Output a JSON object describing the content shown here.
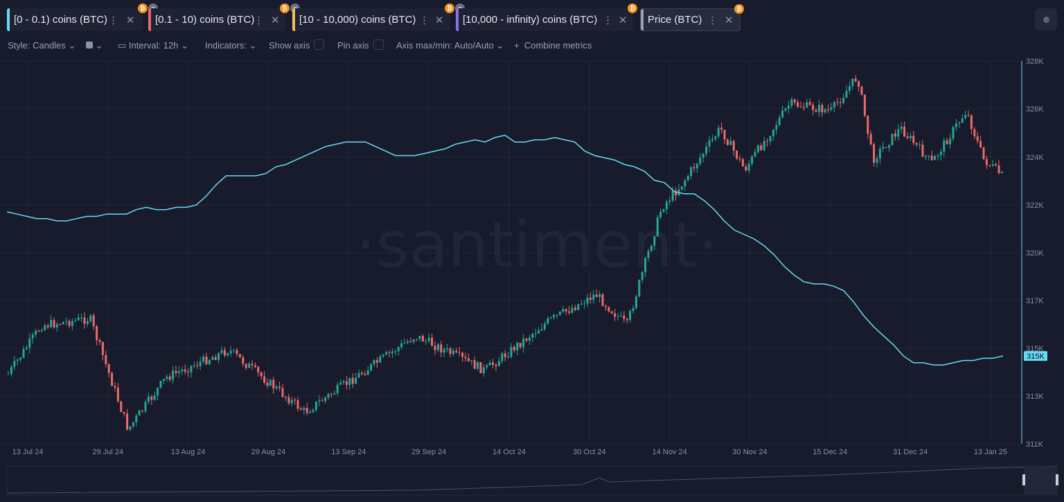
{
  "tabs": [
    {
      "label": "[0 - 0.1) coins (BTC)",
      "color": "#68dbf4",
      "hidden": false
    },
    {
      "label": "[0.1 - 10) coins (BTC)",
      "color": "#f06565",
      "hidden": true
    },
    {
      "label": "[10 - 10,000) coins (BTC)",
      "color": "#f3be5a",
      "hidden": true
    },
    {
      "label": "[10,000 - infinity) coins (BTC)",
      "color": "#8c6ff0",
      "hidden": true
    },
    {
      "label": "Price (BTC)",
      "color": "#c9cedc",
      "hidden": false
    }
  ],
  "toolbar": {
    "style": "Style: Candles",
    "interval": "Interval: 12h",
    "indicators": "Indicators:",
    "show_axis": "Show axis",
    "pin_axis": "Pin axis",
    "axis_minmax": "Axis max/min: Auto/Auto",
    "combine": "Combine metrics"
  },
  "watermark": "·santiment·",
  "colors": {
    "line": "#68dbf4",
    "up": "#26a69a",
    "down": "#ef6a6a",
    "bg": "#171b2b",
    "grid": "#232839"
  },
  "chart_data": {
    "type": "line",
    "series": [
      {
        "name": "[0 - 0.1) coins (BTC)",
        "type": "line",
        "values": [
          321.3,
          321.2,
          321.1,
          321.0,
          321.0,
          320.9,
          320.9,
          321.0,
          321.1,
          321.1,
          321.2,
          321.2,
          321.2,
          321.4,
          321.5,
          321.4,
          321.4,
          321.5,
          321.5,
          321.6,
          322.0,
          322.5,
          322.9,
          322.9,
          322.9,
          322.9,
          323.0,
          323.3,
          323.4,
          323.6,
          323.8,
          324.0,
          324.2,
          324.3,
          324.4,
          324.4,
          324.4,
          324.2,
          324.0,
          323.8,
          323.8,
          323.8,
          323.9,
          324.0,
          324.1,
          324.3,
          324.4,
          324.5,
          324.4,
          324.6,
          324.7,
          324.4,
          324.4,
          324.5,
          324.5,
          324.6,
          324.5,
          324.4,
          324.0,
          323.8,
          323.7,
          323.6,
          323.4,
          323.3,
          323.1,
          322.7,
          322.6,
          322.2,
          322.1,
          322.1,
          321.8,
          321.4,
          320.9,
          320.5,
          320.3,
          320.1,
          319.8,
          319.4,
          318.9,
          318.5,
          318.2,
          318.1,
          318.1,
          318.0,
          317.8,
          317.3,
          316.7,
          316.2,
          315.8,
          315.4,
          314.9,
          314.6,
          314.6,
          314.5,
          314.5,
          314.6,
          314.7,
          314.7,
          314.8,
          314.8,
          314.9
        ]
      },
      {
        "name": "Price (BTC)",
        "type": "candles"
      }
    ],
    "x_labels": [
      "13 Jul 24",
      "29 Jul 24",
      "13 Aug 24",
      "29 Aug 24",
      "13 Sep 24",
      "29 Sep 24",
      "14 Oct 24",
      "30 Oct 24",
      "14 Nov 24",
      "30 Nov 24",
      "15 Dec 24",
      "31 Dec 24",
      "13 Jan 25"
    ],
    "y_labels": [
      "328K",
      "326K",
      "324K",
      "322K",
      "320K",
      "317K",
      "315K",
      "313K",
      "311K"
    ],
    "current_value_label": "315K",
    "ylim": [
      311,
      328
    ],
    "grid": true
  }
}
